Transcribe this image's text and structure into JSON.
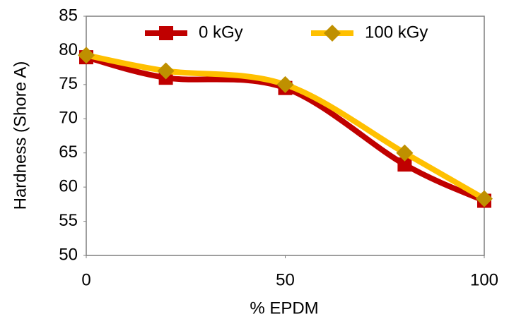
{
  "chart_data": {
    "type": "line",
    "xlabel": "% EPDM",
    "ylabel": "Hardness (Shore A)",
    "x": [
      0,
      20,
      50,
      80,
      100
    ],
    "series": [
      {
        "name": "0 kGy",
        "color": "#c00000",
        "marker": "square",
        "marker_color": "#c00000",
        "values": [
          79,
          76,
          74.5,
          63.3,
          58
        ]
      },
      {
        "name": "100 kGy",
        "color": "#ffc000",
        "marker": "diamond",
        "marker_color": "#bf9000",
        "values": [
          79.3,
          77,
          75,
          65,
          58.3
        ]
      }
    ],
    "xlim": [
      0,
      100
    ],
    "xticks": [
      0,
      50,
      100
    ],
    "ylim": [
      50,
      85
    ],
    "yticks": [
      50,
      55,
      60,
      65,
      70,
      75,
      80,
      85
    ],
    "grid": false,
    "legend": "top",
    "smooth": true
  }
}
